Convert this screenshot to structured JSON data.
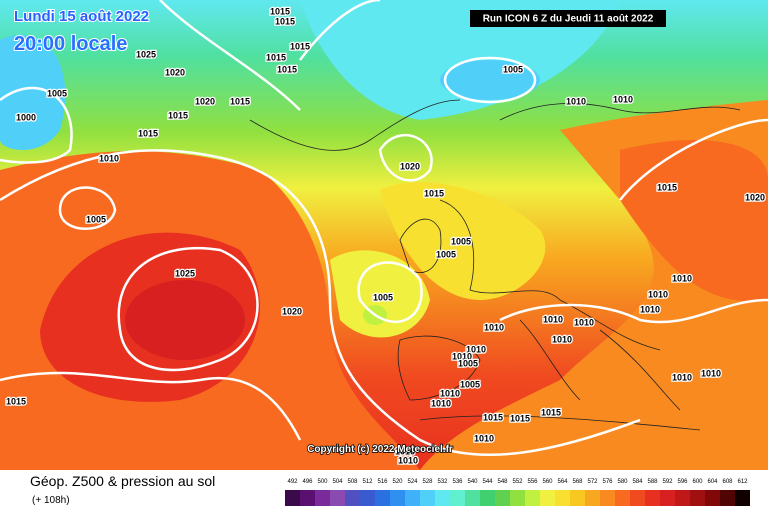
{
  "header": {
    "date": "Lundi 15 août 2022",
    "time": "20:00 locale",
    "run": "Run ICON 6 Z du Jeudi 11 août 2022"
  },
  "copyright": "Copyright (c) 2022 Meteociel.fr",
  "legend": {
    "title": "Géop. Z500 & pression au sol",
    "lead": "(+ 108h)",
    "scale": [
      492,
      496,
      500,
      504,
      508,
      512,
      516,
      520,
      524,
      528,
      532,
      536,
      540,
      544,
      548,
      552,
      556,
      560,
      564,
      568,
      572,
      576,
      580,
      584,
      588,
      592,
      596,
      600,
      604,
      608,
      612
    ],
    "colors": [
      "#3a0a4a",
      "#5a1070",
      "#7a2a9a",
      "#8a4ab0",
      "#5050c0",
      "#3a5ad0",
      "#2a70e0",
      "#3090f0",
      "#40b0f8",
      "#50d0f8",
      "#60e8f0",
      "#60f0d0",
      "#50e0a0",
      "#40d070",
      "#60d050",
      "#90e040",
      "#c0f040",
      "#f0f040",
      "#f8e030",
      "#f8c820",
      "#f8a820",
      "#f88a20",
      "#f86a20",
      "#f04a20",
      "#e83020",
      "#d82020",
      "#c01818",
      "#a01010",
      "#800808",
      "#500404",
      "#100000"
    ]
  },
  "isobars": [
    "1015",
    "1015",
    "1015",
    "1015",
    "1015",
    "1020",
    "1025",
    "1005",
    "1000",
    "1020",
    "1015",
    "1015",
    "1015",
    "1010",
    "1005",
    "1010",
    "1010",
    "1020",
    "1015",
    "1015",
    "1020",
    "1005",
    "1005",
    "1005",
    "1025",
    "1010",
    "1010",
    "1010",
    "1005",
    "1020",
    "1010",
    "1010",
    "1010",
    "1010",
    "1010",
    "1010",
    "1005",
    "1010",
    "1010",
    "1005",
    "1015",
    "1010",
    "1010",
    "1015",
    "1015",
    "1015",
    "1010",
    "1010",
    "1010"
  ]
}
